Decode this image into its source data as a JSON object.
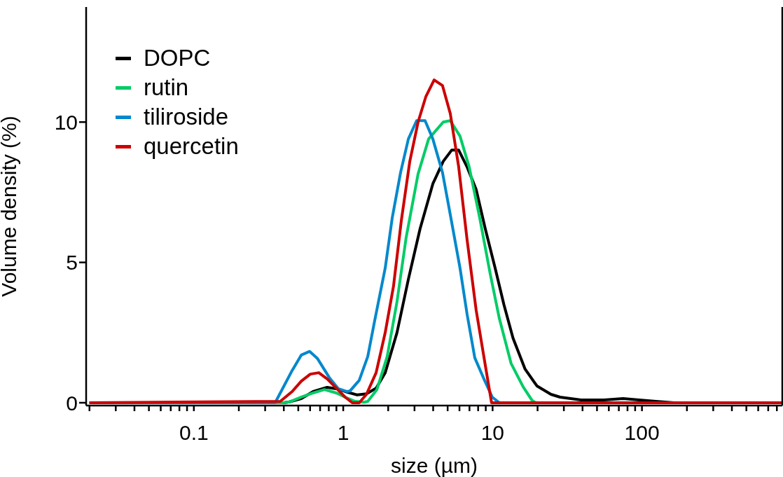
{
  "chart_data": {
    "type": "line",
    "xlabel": "size (µm)",
    "ylabel": "Volume density (%)",
    "log": "x",
    "legend": "top left",
    "grid": false,
    "marker": "none",
    "line_style": "solid",
    "xlim": [
      0.019,
      870
    ],
    "ylim": [
      -0.1,
      14.1
    ],
    "yticks": [
      0,
      5,
      10
    ],
    "xticks": [
      {
        "value": 0.02,
        "label": null
      },
      {
        "value": 0.03,
        "label": null
      },
      {
        "value": 0.04,
        "label": null
      },
      {
        "value": 0.05,
        "label": null
      },
      {
        "value": 0.06,
        "label": null
      },
      {
        "value": 0.07,
        "label": null
      },
      {
        "value": 0.08,
        "label": null
      },
      {
        "value": 0.09,
        "label": null
      },
      0.1,
      {
        "value": 0.2,
        "label": null
      },
      {
        "value": 0.3,
        "label": null
      },
      {
        "value": 0.4,
        "label": null
      },
      {
        "value": 0.5,
        "label": null
      },
      {
        "value": 0.6,
        "label": null
      },
      {
        "value": 0.7,
        "label": null
      },
      {
        "value": 0.8,
        "label": null
      },
      {
        "value": 0.9,
        "label": null
      },
      1,
      {
        "value": 2,
        "label": null
      },
      {
        "value": 3,
        "label": null
      },
      {
        "value": 4,
        "label": null
      },
      {
        "value": 5,
        "label": null
      },
      {
        "value": 6,
        "label": null
      },
      {
        "value": 7,
        "label": null
      },
      {
        "value": 8,
        "label": null
      },
      {
        "value": 9,
        "label": null
      },
      10,
      {
        "value": 20,
        "label": null
      },
      {
        "value": 30,
        "label": null
      },
      {
        "value": 40,
        "label": null
      },
      {
        "value": 50,
        "label": null
      },
      {
        "value": 60,
        "label": null
      },
      {
        "value": 70,
        "label": null
      },
      {
        "value": 80,
        "label": null
      },
      {
        "value": 90,
        "label": null
      },
      100,
      {
        "value": 200,
        "label": null
      },
      {
        "value": 300,
        "label": null
      },
      {
        "value": 400,
        "label": null
      },
      {
        "value": 500,
        "label": null
      },
      {
        "value": 600,
        "label": null
      },
      {
        "value": 700,
        "label": null
      },
      {
        "value": 800,
        "label": null
      }
    ],
    "series": [
      {
        "name": "DOPC",
        "color": "#000000",
        "x": [
          0.02,
          0.4,
          0.436,
          0.524,
          0.629,
          0.78,
          0.898,
          1.03,
          1.24,
          1.43,
          1.66,
          1.91,
          2.29,
          2.73,
          3.27,
          3.98,
          4.67,
          5.32,
          5.93,
          6.75,
          7.76,
          8.93,
          10.4,
          11.9,
          13.7,
          16.5,
          19.8,
          24.6,
          28.3,
          39.1,
          55.8,
          74.8,
          95.7,
          124,
          164,
          870
        ],
        "values": [
          0,
          0,
          0.03,
          0.15,
          0.4,
          0.55,
          0.5,
          0.4,
          0.28,
          0.32,
          0.52,
          1.07,
          2.5,
          4.4,
          6.2,
          7.8,
          8.6,
          9.0,
          9.0,
          8.4,
          7.6,
          6.2,
          4.8,
          3.5,
          2.3,
          1.2,
          0.6,
          0.3,
          0.2,
          0.1,
          0.1,
          0.15,
          0.1,
          0.05,
          0,
          0
        ]
      },
      {
        "name": "rutin",
        "color": "#00cc66",
        "x": [
          0.02,
          0.4,
          0.436,
          0.524,
          0.629,
          0.748,
          0.898,
          1.03,
          1.2,
          1.38,
          1.46,
          1.68,
          1.97,
          2.29,
          2.64,
          3.17,
          3.73,
          4.67,
          5.21,
          6.05,
          6.97,
          8.19,
          9.63,
          11.1,
          13.3,
          16.0,
          18.4,
          19.4,
          870
        ],
        "values": [
          0,
          0,
          0.03,
          0.2,
          0.35,
          0.47,
          0.35,
          0.2,
          0.05,
          0.02,
          0.05,
          0.47,
          1.65,
          3.6,
          5.9,
          8.15,
          9.4,
          10.0,
          10.05,
          9.5,
          8.4,
          6.6,
          4.6,
          3.0,
          1.4,
          0.57,
          0.08,
          0,
          0
        ]
      },
      {
        "name": "tiliroside",
        "color": "#0088cc",
        "x": [
          0.02,
          0.35,
          0.455,
          0.524,
          0.596,
          0.671,
          0.806,
          0.927,
          1.055,
          1.11,
          1.28,
          1.46,
          1.62,
          1.91,
          2.13,
          2.42,
          2.73,
          3.1,
          3.53,
          3.98,
          4.62,
          5.21,
          6.05,
          6.75,
          7.6,
          8.83,
          9.95,
          11.1,
          870
        ],
        "values": [
          0,
          0,
          1.15,
          1.7,
          1.83,
          1.58,
          0.9,
          0.5,
          0.4,
          0.42,
          0.8,
          1.65,
          2.9,
          4.8,
          6.6,
          8.2,
          9.4,
          10.05,
          10.05,
          9.4,
          8.2,
          6.7,
          4.8,
          3.15,
          1.6,
          0.8,
          0.2,
          0,
          0
        ]
      },
      {
        "name": "quercetin",
        "color": "#cc0000",
        "x": [
          0.02,
          0.379,
          0.455,
          0.524,
          0.602,
          0.686,
          0.78,
          0.898,
          1.03,
          1.15,
          1.28,
          1.43,
          1.66,
          1.91,
          2.17,
          2.45,
          2.79,
          3.17,
          3.57,
          4.06,
          4.62,
          5.21,
          5.93,
          6.75,
          7.76,
          8.83,
          9.84,
          870
        ],
        "values": [
          0,
          0.05,
          0.4,
          0.77,
          1.02,
          1.07,
          0.85,
          0.52,
          0.2,
          0,
          0,
          0.3,
          1.07,
          2.5,
          4.15,
          6.5,
          8.6,
          10.0,
          10.9,
          11.5,
          11.3,
          10.3,
          8.4,
          5.8,
          3.3,
          1.5,
          0,
          0
        ]
      }
    ]
  }
}
